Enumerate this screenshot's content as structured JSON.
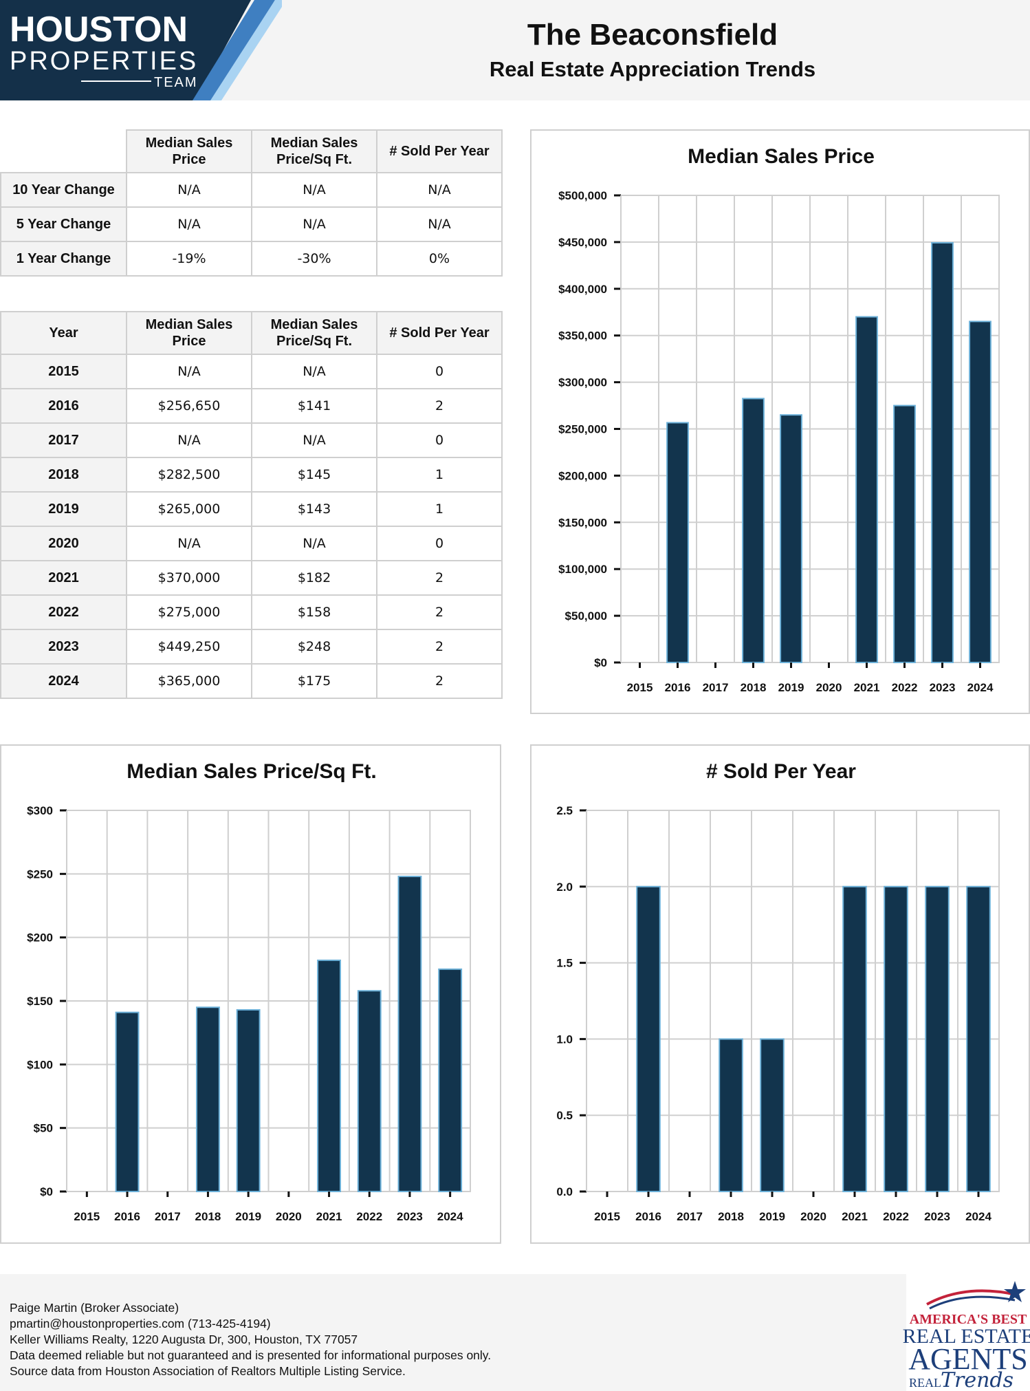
{
  "header": {
    "logo_line1": "HOUSTON",
    "logo_line2": "PROPERTIES",
    "logo_line3": "TEAM",
    "title": "The Beaconsfield",
    "subtitle": "Real Estate Appreciation Trends"
  },
  "change_table": {
    "headers": [
      "",
      "Median Sales Price",
      "Median Sales Price/Sq Ft.",
      "# Sold Per Year"
    ],
    "rows": [
      {
        "label": "10 Year Change",
        "price": "N/A",
        "sqft": "N/A",
        "sold": "N/A"
      },
      {
        "label": "5 Year Change",
        "price": "N/A",
        "sqft": "N/A",
        "sold": "N/A"
      },
      {
        "label": "1 Year Change",
        "price": "-19%",
        "sqft": "-30%",
        "sold": "0%"
      }
    ]
  },
  "year_table": {
    "headers": [
      "Year",
      "Median Sales Price",
      "Median Sales Price/Sq Ft.",
      "# Sold Per Year"
    ],
    "rows": [
      {
        "year": "2015",
        "price": "N/A",
        "sqft": "N/A",
        "sold": "0"
      },
      {
        "year": "2016",
        "price": "$256,650",
        "sqft": "$141",
        "sold": "2"
      },
      {
        "year": "2017",
        "price": "N/A",
        "sqft": "N/A",
        "sold": "0"
      },
      {
        "year": "2018",
        "price": "$282,500",
        "sqft": "$145",
        "sold": "1"
      },
      {
        "year": "2019",
        "price": "$265,000",
        "sqft": "$143",
        "sold": "1"
      },
      {
        "year": "2020",
        "price": "N/A",
        "sqft": "N/A",
        "sold": "0"
      },
      {
        "year": "2021",
        "price": "$370,000",
        "sqft": "$182",
        "sold": "2"
      },
      {
        "year": "2022",
        "price": "$275,000",
        "sqft": "$158",
        "sold": "2"
      },
      {
        "year": "2023",
        "price": "$449,250",
        "sqft": "$248",
        "sold": "2"
      },
      {
        "year": "2024",
        "price": "$365,000",
        "sqft": "$175",
        "sold": "2"
      }
    ]
  },
  "chart_data": [
    {
      "id": "price",
      "type": "bar",
      "title": "Median Sales Price",
      "categories": [
        "2015",
        "2016",
        "2017",
        "2018",
        "2019",
        "2020",
        "2021",
        "2022",
        "2023",
        "2024"
      ],
      "values": [
        0,
        256650,
        0,
        282500,
        265000,
        0,
        370000,
        275000,
        449250,
        365000
      ],
      "ylim": [
        0,
        500000
      ],
      "yticks": [
        0,
        50000,
        100000,
        150000,
        200000,
        250000,
        300000,
        350000,
        400000,
        450000,
        500000
      ],
      "ytick_labels": [
        "$0",
        "$50,000",
        "$100,000",
        "$150,000",
        "$200,000",
        "$250,000",
        "$300,000",
        "$350,000",
        "$400,000",
        "$450,000",
        "$500,000"
      ],
      "grid": true,
      "bar_color": "#12344d",
      "bar_edge_color": "#6bb0d8"
    },
    {
      "id": "sqft",
      "type": "bar",
      "title": "Median Sales Price/Sq Ft.",
      "categories": [
        "2015",
        "2016",
        "2017",
        "2018",
        "2019",
        "2020",
        "2021",
        "2022",
        "2023",
        "2024"
      ],
      "values": [
        0,
        141,
        0,
        145,
        143,
        0,
        182,
        158,
        248,
        175
      ],
      "ylim": [
        0,
        300
      ],
      "yticks": [
        0,
        50,
        100,
        150,
        200,
        250,
        300
      ],
      "ytick_labels": [
        "$0",
        "$50",
        "$100",
        "$150",
        "$200",
        "$250",
        "$300"
      ],
      "grid": true,
      "bar_color": "#12344d",
      "bar_edge_color": "#6bb0d8"
    },
    {
      "id": "sold",
      "type": "bar",
      "title": "# Sold Per Year",
      "categories": [
        "2015",
        "2016",
        "2017",
        "2018",
        "2019",
        "2020",
        "2021",
        "2022",
        "2023",
        "2024"
      ],
      "values": [
        0,
        2,
        0,
        1,
        1,
        0,
        2,
        2,
        2,
        2
      ],
      "ylim": [
        0,
        2.5
      ],
      "yticks": [
        0,
        0.5,
        1,
        1.5,
        2,
        2.5
      ],
      "ytick_labels": [
        "0.0",
        "0.5",
        "1.0",
        "1.5",
        "2.0",
        "2.5"
      ],
      "grid": true,
      "bar_color": "#12344d",
      "bar_edge_color": "#6bb0d8"
    }
  ],
  "footer": {
    "lines": [
      "Paige Martin (Broker Associate)",
      "pmartin@houstonproperties.com (713-425-4194)",
      "Keller Williams Realty, 1220 Augusta Dr, 300, Houston, TX 77057",
      "Data deemed reliable but not guaranteed and is presented for informational purposes only.",
      "Source data from Houston Association of Realtors Multiple Listing Service."
    ],
    "badge_line1": "AMERICA'S BEST",
    "badge_line2": "REAL ESTATE",
    "badge_line3": "AGENTS",
    "badge_line4": "REAL",
    "badge_line5": "Trends"
  }
}
